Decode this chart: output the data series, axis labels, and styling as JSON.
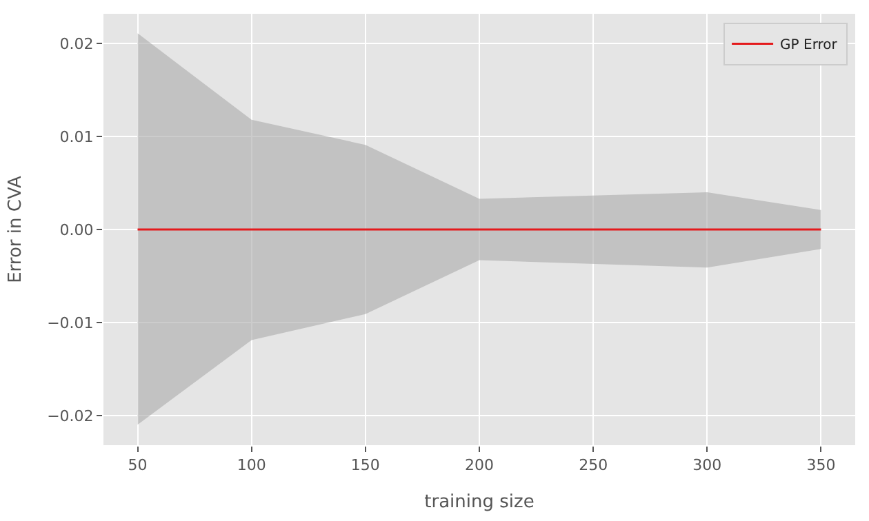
{
  "chart_data": {
    "type": "line",
    "xlabel": "training size",
    "ylabel": "Error in CVA",
    "x": [
      50,
      100,
      150,
      200,
      300,
      350
    ],
    "series": [
      {
        "name": "GP Error",
        "color": "#e41a1c",
        "values": [
          0,
          0,
          0,
          0,
          0,
          0
        ],
        "lower": [
          -0.021,
          -0.0119,
          -0.0091,
          -0.0033,
          -0.0041,
          -0.0021
        ],
        "upper": [
          0.0211,
          0.0118,
          0.0091,
          0.0033,
          0.004,
          0.0021
        ]
      }
    ],
    "xlim": [
      35,
      365
    ],
    "xticks": [
      50,
      100,
      150,
      200,
      250,
      300,
      350
    ],
    "ylim": [
      -0.0232,
      0.0232
    ],
    "yticks": [
      {
        "value": -0.02,
        "label": "−0.02"
      },
      {
        "value": -0.01,
        "label": "−0.01"
      },
      {
        "value": 0,
        "label": "0.00"
      },
      {
        "value": 0.01,
        "label": "0.01"
      },
      {
        "value": 0.02,
        "label": "0.02"
      }
    ],
    "grid": true,
    "legend": "top right",
    "marker": "none",
    "line_style": "solid"
  }
}
